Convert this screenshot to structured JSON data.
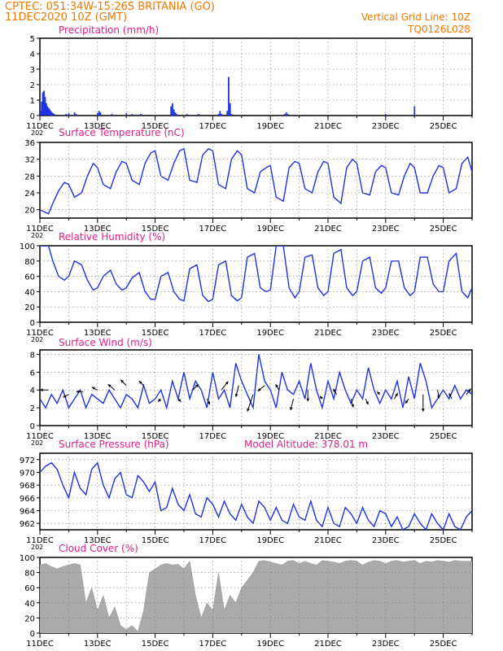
{
  "header": {
    "line1": "CPTEC:   051:34W-15:26S   BRITANIA (GO)",
    "line2": "11DEC2020  10Z (GMT)",
    "vgrid": "Vertical Grid Line: 10Z",
    "code": "TQ0126L028"
  },
  "colors": {
    "header": "#f07800",
    "title": "#e01e8c",
    "series": "#1f32e0",
    "cloud": "#aaaaaa",
    "arrow": "#000000"
  },
  "x_ticks": [
    "11DEC",
    "13DEC",
    "15DEC",
    "17DEC",
    "19DEC",
    "21DEC",
    "23DEC",
    "25DEC"
  ],
  "year_fragment": "202",
  "panels": {
    "precip": {
      "title": "Precipitation (mm/h)",
      "yticks": [
        0,
        1,
        2,
        3,
        4,
        5
      ]
    },
    "temp": {
      "title": "Surface Temperature (nC)",
      "yticks": [
        20,
        24,
        28,
        32,
        36
      ]
    },
    "humidity": {
      "title": "Relative Humidity (%)",
      "yticks": [
        0,
        20,
        40,
        60,
        80,
        100
      ]
    },
    "wind": {
      "title": "Surface Wind (m/s)",
      "yticks": [
        0,
        2,
        4,
        6,
        8
      ]
    },
    "pressure": {
      "title": "Surface Pressure (hPa)",
      "yticks": [
        962,
        964,
        966,
        968,
        970,
        972
      ],
      "altitude": "Model Altitude: 378.01 m"
    },
    "cloud": {
      "title": "Cloud Cover (%)",
      "yticks": [
        0,
        20,
        40,
        60,
        80,
        100
      ]
    }
  },
  "chart_data": [
    {
      "type": "bar",
      "panel": "precip",
      "title": "Precipitation (mm/h)",
      "x_unit": "days since 11DEC 10Z",
      "ylim": [
        0,
        5
      ],
      "x": [
        0.02,
        0.06,
        0.1,
        0.14,
        0.18,
        0.22,
        0.26,
        0.3,
        0.34,
        0.38,
        0.42,
        0.46,
        0.5,
        0.9,
        1.0,
        1.2,
        1.25,
        2.0,
        2.05,
        2.1,
        2.5,
        3.0,
        3.2,
        3.5,
        4.55,
        4.6,
        4.65,
        4.7,
        4.75,
        4.8,
        5.1,
        5.5,
        6.2,
        6.25,
        6.3,
        6.5,
        6.55,
        6.6,
        6.65,
        8.5,
        8.55,
        8.6,
        9.0,
        9.5,
        10.0,
        11.0,
        12.0,
        12.5,
        13.0,
        13.5
      ],
      "values": [
        0.3,
        0.9,
        1.5,
        1.6,
        1.2,
        0.8,
        0.6,
        0.5,
        0.4,
        0.3,
        0.2,
        0.15,
        0.1,
        0.1,
        0.15,
        0.2,
        0.1,
        0.15,
        0.3,
        0.2,
        0.1,
        0.15,
        0.1,
        0.1,
        0.6,
        0.8,
        0.4,
        0.2,
        0.1,
        0.05,
        0.1,
        0.1,
        0.1,
        0.3,
        0.1,
        0.3,
        2.5,
        0.8,
        0.1,
        0.1,
        0.2,
        0.1,
        0.05,
        0.05,
        0.05,
        0.05,
        0.1,
        0.05,
        0.6,
        0.05
      ]
    },
    {
      "type": "line",
      "panel": "temp",
      "title": "Surface Temperature (nC)",
      "x_unit": "days since 11DEC 10Z",
      "ylim": [
        18,
        36
      ],
      "x": [
        0.0,
        0.3,
        0.45,
        0.65,
        0.85,
        1.0,
        1.2,
        1.45,
        1.65,
        1.85,
        2.0,
        2.2,
        2.45,
        2.65,
        2.85,
        3.0,
        3.2,
        3.45,
        3.65,
        3.85,
        4.0,
        4.2,
        4.45,
        4.65,
        4.85,
        5.0,
        5.2,
        5.45,
        5.65,
        5.85,
        6.0,
        6.2,
        6.45,
        6.65,
        6.85,
        7.0,
        7.2,
        7.45,
        7.65,
        7.85,
        8.0,
        8.2,
        8.45,
        8.65,
        8.85,
        9.0,
        9.2,
        9.45,
        9.65,
        9.85,
        10.0,
        10.2,
        10.45,
        10.65,
        10.85,
        11.0,
        11.2,
        11.45,
        11.65,
        11.85,
        12.0,
        12.2,
        12.45,
        12.65,
        12.85,
        13.0,
        13.2,
        13.45,
        13.65,
        13.85,
        14.0,
        14.2,
        14.45,
        14.65,
        14.85,
        15.0
      ],
      "values": [
        20.0,
        19.0,
        21.5,
        24.5,
        26.5,
        26.0,
        23.0,
        24.0,
        28.0,
        31.0,
        30.0,
        26.0,
        25.0,
        29.0,
        31.5,
        31.0,
        27.0,
        26.0,
        31.0,
        33.5,
        34.0,
        28.0,
        27.0,
        31.0,
        34.0,
        34.5,
        27.0,
        26.5,
        33.0,
        34.5,
        34.0,
        26.0,
        25.0,
        32.0,
        34.0,
        33.0,
        25.0,
        24.0,
        29.0,
        30.0,
        30.5,
        23.0,
        22.0,
        30.0,
        31.5,
        31.0,
        25.0,
        24.0,
        29.0,
        31.5,
        31.0,
        23.0,
        21.5,
        30.0,
        32.0,
        31.0,
        24.0,
        23.5,
        29.0,
        30.5,
        30.0,
        24.0,
        23.5,
        28.0,
        31.0,
        30.0,
        24.0,
        24.0,
        28.0,
        30.5,
        30.0,
        24.0,
        25.0,
        31.0,
        32.5,
        29.0
      ]
    },
    {
      "type": "line",
      "panel": "humidity",
      "title": "Relative Humidity (%)",
      "x_unit": "days since 11DEC 10Z",
      "ylim": [
        0,
        100
      ],
      "x": [
        0.0,
        0.3,
        0.45,
        0.65,
        0.85,
        1.0,
        1.2,
        1.45,
        1.65,
        1.85,
        2.0,
        2.2,
        2.45,
        2.65,
        2.85,
        3.0,
        3.2,
        3.45,
        3.65,
        3.85,
        4.0,
        4.2,
        4.45,
        4.65,
        4.85,
        5.0,
        5.2,
        5.45,
        5.65,
        5.85,
        6.0,
        6.2,
        6.45,
        6.65,
        6.85,
        7.0,
        7.2,
        7.45,
        7.65,
        7.85,
        8.0,
        8.2,
        8.45,
        8.65,
        8.85,
        9.0,
        9.2,
        9.45,
        9.65,
        9.85,
        10.0,
        10.2,
        10.45,
        10.65,
        10.85,
        11.0,
        11.2,
        11.45,
        11.65,
        11.85,
        12.0,
        12.2,
        12.45,
        12.65,
        12.85,
        13.0,
        13.2,
        13.45,
        13.65,
        13.85,
        14.0,
        14.2,
        14.45,
        14.65,
        14.85,
        15.0
      ],
      "values": [
        100.0,
        100.0,
        80.0,
        60.0,
        55.0,
        60.0,
        80.0,
        75.0,
        55.0,
        42.0,
        45.0,
        60.0,
        68.0,
        50.0,
        42.0,
        45.0,
        58.0,
        65.0,
        40.0,
        30.0,
        30.0,
        60.0,
        65.0,
        40.0,
        30.0,
        28.0,
        70.0,
        75.0,
        35.0,
        27.0,
        30.0,
        75.0,
        80.0,
        35.0,
        28.0,
        32.0,
        85.0,
        90.0,
        45.0,
        40.0,
        42.0,
        100.0,
        100.0,
        45.0,
        32.0,
        40.0,
        85.0,
        88.0,
        45.0,
        35.0,
        40.0,
        90.0,
        95.0,
        45.0,
        35.0,
        40.0,
        80.0,
        85.0,
        45.0,
        38.0,
        45.0,
        80.0,
        80.0,
        45.0,
        35.0,
        40.0,
        85.0,
        85.0,
        50.0,
        40.0,
        40.0,
        80.0,
        90.0,
        40.0,
        32.0,
        45.0
      ]
    },
    {
      "type": "line",
      "panel": "wind",
      "title": "Surface Wind (m/s)",
      "x_unit": "days since 11DEC 10Z",
      "ylim": [
        0,
        8.5
      ],
      "x": [
        0.0,
        0.2,
        0.4,
        0.6,
        0.8,
        1.0,
        1.2,
        1.4,
        1.6,
        1.8,
        2.0,
        2.2,
        2.4,
        2.6,
        2.8,
        3.0,
        3.2,
        3.4,
        3.6,
        3.8,
        4.0,
        4.2,
        4.4,
        4.6,
        4.8,
        5.0,
        5.2,
        5.4,
        5.6,
        5.8,
        6.0,
        6.2,
        6.4,
        6.6,
        6.8,
        7.0,
        7.2,
        7.4,
        7.6,
        7.8,
        8.0,
        8.2,
        8.4,
        8.6,
        8.8,
        9.0,
        9.2,
        9.4,
        9.6,
        9.8,
        10.0,
        10.2,
        10.4,
        10.6,
        10.8,
        11.0,
        11.2,
        11.4,
        11.6,
        11.8,
        12.0,
        12.2,
        12.4,
        12.6,
        12.8,
        13.0,
        13.2,
        13.4,
        13.6,
        13.8,
        14.0,
        14.2,
        14.4,
        14.6,
        14.8,
        15.0
      ],
      "values": [
        3.0,
        2.0,
        3.5,
        2.5,
        4.0,
        2.0,
        3.0,
        4.0,
        2.0,
        3.5,
        3.0,
        2.5,
        4.0,
        3.0,
        2.0,
        3.5,
        3.0,
        2.0,
        4.5,
        2.5,
        3.0,
        4.0,
        2.0,
        5.0,
        3.0,
        6.0,
        3.0,
        5.0,
        4.0,
        2.0,
        6.0,
        3.0,
        4.0,
        2.0,
        7.0,
        5.0,
        3.5,
        2.0,
        8.0,
        5.0,
        4.0,
        2.0,
        6.0,
        4.0,
        3.5,
        5.0,
        3.0,
        7.0,
        4.0,
        2.0,
        5.0,
        3.0,
        6.0,
        4.0,
        2.5,
        4.0,
        3.0,
        6.5,
        4.0,
        2.5,
        4.0,
        3.0,
        5.0,
        2.0,
        5.5,
        3.0,
        7.0,
        5.0,
        2.0,
        3.0,
        4.0,
        3.0,
        4.5,
        3.0,
        4.0,
        3.5
      ],
      "arrows": {
        "x": [
          0.3,
          1.0,
          1.5,
          2.0,
          2.6,
          3.0,
          3.6,
          4.2,
          4.8,
          5.3,
          5.8,
          6.3,
          6.9,
          7.4,
          7.8,
          8.3,
          8.8,
          9.3,
          9.8,
          10.3,
          10.8,
          11.3,
          11.8,
          12.3,
          12.8,
          13.3,
          13.8,
          14.3,
          14.8
        ],
        "y": [
          4.0,
          3.5,
          3.8,
          4.0,
          4.0,
          4.5,
          4.5,
          3.0,
          3.0,
          4.0,
          3.0,
          4.0,
          4.5,
          3.5,
          4.5,
          4.0,
          3.0,
          4.0,
          3.0,
          3.5,
          3.0,
          3.0,
          3.5,
          3.0,
          3.0,
          3.5,
          4.0,
          3.0,
          3.5
        ],
        "dx": [
          -1.5,
          -1.0,
          -1.2,
          -1.0,
          -1.2,
          -1.0,
          -0.8,
          -0.5,
          0.5,
          1.0,
          0.5,
          1.2,
          -0.5,
          -1.0,
          -1.2,
          -0.6,
          -0.5,
          0.0,
          -0.4,
          -0.6,
          0.4,
          0.5,
          -0.5,
          0.6,
          -0.6,
          0.0,
          0.3,
          -0.5,
          0.8
        ],
        "dy": [
          0.0,
          -0.5,
          0.0,
          0.5,
          1.0,
          1.0,
          0.8,
          -0.5,
          -0.5,
          1.0,
          -1.0,
          1.5,
          -2.0,
          -3.0,
          -1.0,
          1.0,
          -2.0,
          -2.0,
          0.5,
          1.0,
          -1.5,
          -1.0,
          0.5,
          1.0,
          -0.8,
          -3.0,
          -1.5,
          1.0,
          1.0
        ]
      }
    },
    {
      "type": "line",
      "panel": "pressure",
      "title": "Surface Pressure (hPa)",
      "x_unit": "days since 11DEC 10Z",
      "ylim": [
        961,
        973
      ],
      "x": [
        0.0,
        0.2,
        0.4,
        0.6,
        0.8,
        1.0,
        1.2,
        1.4,
        1.6,
        1.8,
        2.0,
        2.2,
        2.4,
        2.6,
        2.8,
        3.0,
        3.2,
        3.4,
        3.6,
        3.8,
        4.0,
        4.2,
        4.4,
        4.6,
        4.8,
        5.0,
        5.2,
        5.4,
        5.6,
        5.8,
        6.0,
        6.2,
        6.4,
        6.6,
        6.8,
        7.0,
        7.2,
        7.4,
        7.6,
        7.8,
        8.0,
        8.2,
        8.4,
        8.6,
        8.8,
        9.0,
        9.2,
        9.4,
        9.6,
        9.8,
        10.0,
        10.2,
        10.4,
        10.6,
        10.8,
        11.0,
        11.2,
        11.4,
        11.6,
        11.8,
        12.0,
        12.2,
        12.4,
        12.6,
        12.8,
        13.0,
        13.2,
        13.4,
        13.6,
        13.8,
        14.0,
        14.2,
        14.4,
        14.6,
        14.8,
        15.0
      ],
      "values": [
        970.0,
        971.0,
        971.5,
        970.5,
        968.0,
        966.0,
        970.0,
        967.5,
        966.5,
        970.5,
        971.5,
        968.0,
        966.0,
        969.0,
        970.0,
        966.5,
        966.0,
        969.5,
        968.5,
        967.0,
        968.5,
        964.0,
        964.5,
        967.5,
        965.0,
        964.0,
        966.5,
        963.5,
        963.0,
        966.0,
        965.0,
        963.0,
        965.5,
        963.5,
        962.5,
        965.0,
        963.0,
        962.0,
        965.5,
        964.5,
        962.5,
        964.5,
        962.5,
        962.0,
        965.0,
        963.0,
        962.5,
        965.5,
        962.5,
        961.5,
        964.5,
        962.0,
        961.5,
        964.5,
        963.5,
        962.0,
        964.5,
        962.5,
        961.5,
        964.0,
        963.5,
        961.5,
        963.0,
        961.0,
        961.5,
        963.5,
        962.0,
        961.0,
        963.5,
        962.0,
        961.0,
        963.5,
        961.5,
        961.0,
        963.0,
        964.0
      ]
    },
    {
      "type": "area",
      "panel": "cloud",
      "title": "Cloud Cover (%)",
      "x_unit": "days since 11DEC 10Z",
      "ylim": [
        0,
        100
      ],
      "x": [
        0.0,
        0.2,
        0.4,
        0.6,
        0.8,
        1.0,
        1.2,
        1.4,
        1.6,
        1.8,
        2.0,
        2.2,
        2.4,
        2.6,
        2.8,
        3.0,
        3.2,
        3.4,
        3.6,
        3.8,
        4.0,
        4.2,
        4.4,
        4.6,
        4.8,
        5.0,
        5.2,
        5.4,
        5.6,
        5.8,
        6.0,
        6.2,
        6.4,
        6.6,
        6.8,
        7.0,
        7.2,
        7.4,
        7.6,
        7.8,
        8.0,
        8.2,
        8.4,
        8.6,
        8.8,
        9.0,
        9.2,
        9.4,
        9.6,
        9.8,
        10.0,
        10.2,
        10.4,
        10.6,
        10.8,
        11.0,
        11.2,
        11.4,
        11.6,
        11.8,
        12.0,
        12.2,
        12.4,
        12.6,
        12.8,
        13.0,
        13.2,
        13.4,
        13.6,
        13.8,
        14.0,
        14.2,
        14.4,
        14.6,
        14.8,
        15.0
      ],
      "values": [
        90.0,
        92.0,
        88.0,
        85.0,
        88.0,
        90.0,
        92.0,
        90.0,
        40.0,
        60.0,
        30.0,
        50.0,
        20.0,
        35.0,
        10.0,
        5.0,
        10.0,
        2.0,
        30.0,
        80.0,
        85.0,
        90.0,
        92.0,
        90.0,
        91.0,
        85.0,
        95.0,
        50.0,
        20.0,
        40.0,
        30.0,
        80.0,
        30.0,
        50.0,
        40.0,
        60.0,
        70.0,
        80.0,
        95.0,
        96.0,
        94.0,
        92.0,
        90.0,
        95.0,
        96.0,
        92.0,
        95.0,
        92.0,
        90.0,
        96.0,
        95.0,
        94.0,
        92.0,
        95.0,
        96.0,
        95.0,
        90.0,
        94.0,
        96.0,
        95.0,
        92.0,
        95.0,
        96.0,
        94.0,
        95.0,
        96.0,
        92.0,
        95.0,
        94.0,
        96.0,
        95.0,
        94.0,
        96.0,
        95.0,
        95.0,
        95.0
      ]
    }
  ]
}
